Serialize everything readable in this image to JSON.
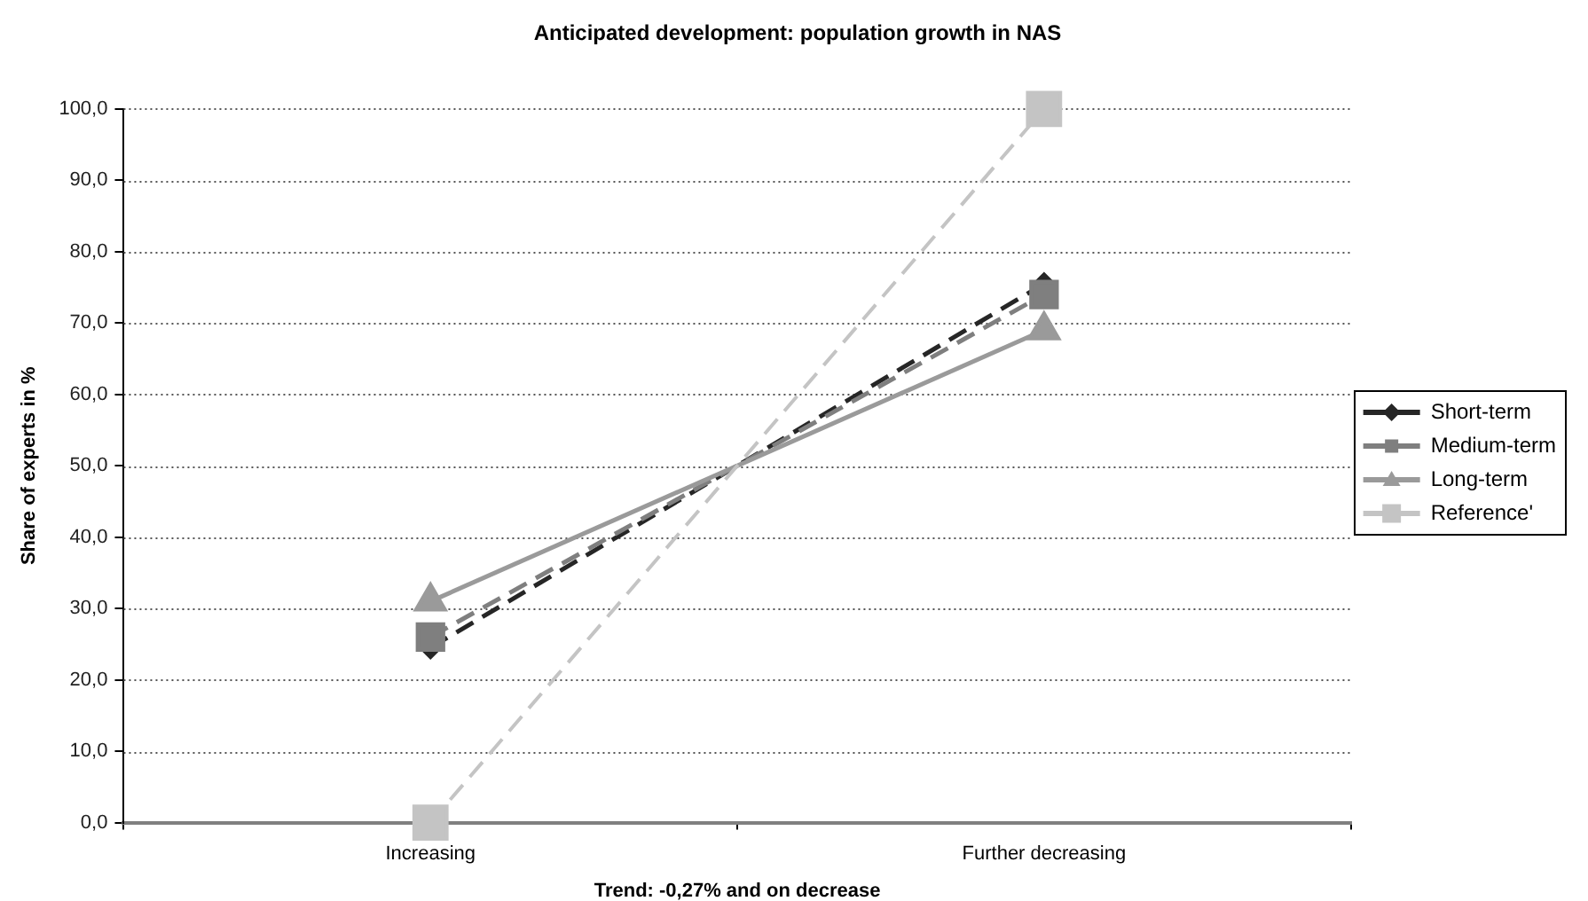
{
  "chart_data": {
    "type": "line",
    "title": "Anticipated development: population growth in NAS",
    "xlabel": "Trend: -0,27% and on decrease",
    "ylabel": "Share of experts in %",
    "categories": [
      "Increasing",
      "Further decreasing"
    ],
    "series": [
      {
        "name": "Short-term",
        "color": "#262626",
        "values": [
          24.5,
          75.5
        ],
        "marker": "diamond",
        "line_style": "dashed"
      },
      {
        "name": "Medium-term",
        "color": "#7f7f7f",
        "values": [
          26,
          74
        ],
        "marker": "square",
        "line_style": "dashed"
      },
      {
        "name": "Long-term",
        "color": "#9a9a9a",
        "values": [
          31,
          69
        ],
        "marker": "triangle",
        "line_style": "solid"
      },
      {
        "name": "Reference'",
        "color": "#c4c4c4",
        "values": [
          0,
          100
        ],
        "marker": "square",
        "line_style": "dashed"
      }
    ],
    "ylim": [
      0,
      100
    ],
    "yticks": [
      {
        "value": 0,
        "label": "0,0"
      },
      {
        "value": 10,
        "label": "10,0"
      },
      {
        "value": 20,
        "label": "20,0"
      },
      {
        "value": 30,
        "label": "30,0"
      },
      {
        "value": 40,
        "label": "40,0"
      },
      {
        "value": 50,
        "label": "50,0"
      },
      {
        "value": 60,
        "label": "60,0"
      },
      {
        "value": 70,
        "label": "70,0"
      },
      {
        "value": 80,
        "label": "80,0"
      },
      {
        "value": 90,
        "label": "90,0"
      },
      {
        "value": 100,
        "label": "100,0"
      }
    ],
    "grid": "y",
    "legend": "right"
  }
}
